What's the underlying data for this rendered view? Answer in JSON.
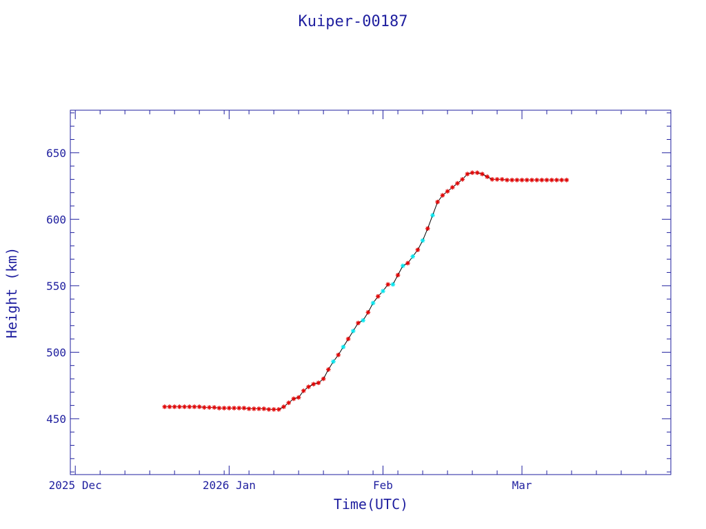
{
  "colors": {
    "axis": "#1f1f9f",
    "text": "#1f1f9f",
    "series_marker": "#e10000",
    "series_marker_alt": "#00e5ee",
    "line": "#000000"
  },
  "chart_data": {
    "type": "scatter",
    "title": "Kuiper-00187",
    "xlabel": "Time(UTC)",
    "ylabel": "Height (km)",
    "xlim": [
      "2025-11-30",
      "2026-03-31"
    ],
    "ylim": [
      408,
      682
    ],
    "x_ticks": [
      {
        "date": "2025-12-01",
        "label": "2025 Dec"
      },
      {
        "date": "2026-01-01",
        "label": "2026 Jan"
      },
      {
        "date": "2026-02-01",
        "label": "Feb"
      },
      {
        "date": "2026-03-01",
        "label": "Mar"
      }
    ],
    "y_ticks": [
      450,
      500,
      550,
      600,
      650
    ],
    "grid": false,
    "legend": "none",
    "series": [
      {
        "marker": "asterisk",
        "points": [
          [
            "2025-12-19",
            459
          ],
          [
            "2025-12-20",
            459
          ],
          [
            "2025-12-21",
            459
          ],
          [
            "2025-12-22",
            459
          ],
          [
            "2025-12-23",
            459
          ],
          [
            "2025-12-24",
            459
          ],
          [
            "2025-12-25",
            459
          ],
          [
            "2025-12-26",
            459
          ],
          [
            "2025-12-27",
            458.5
          ],
          [
            "2025-12-28",
            458.5
          ],
          [
            "2025-12-29",
            458.5
          ],
          [
            "2025-12-30",
            458
          ],
          [
            "2025-12-31",
            458
          ],
          [
            "2026-01-01",
            458
          ],
          [
            "2026-01-02",
            458
          ],
          [
            "2026-01-03",
            458
          ],
          [
            "2026-01-04",
            458
          ],
          [
            "2026-01-05",
            457.5
          ],
          [
            "2026-01-06",
            457.5
          ],
          [
            "2026-01-07",
            457.5
          ],
          [
            "2026-01-08",
            457.5
          ],
          [
            "2026-01-09",
            457
          ],
          [
            "2026-01-10",
            457
          ],
          [
            "2026-01-11",
            457
          ],
          [
            "2026-01-12",
            459
          ],
          [
            "2026-01-13",
            462
          ],
          [
            "2026-01-14",
            465
          ],
          [
            "2026-01-15",
            466
          ],
          [
            "2026-01-16",
            471
          ],
          [
            "2026-01-17",
            474
          ],
          [
            "2026-01-18",
            476
          ],
          [
            "2026-01-19",
            477
          ],
          [
            "2026-01-20",
            480
          ],
          [
            "2026-01-21",
            487
          ],
          [
            "2026-01-22",
            493
          ],
          [
            "2026-01-23",
            498
          ],
          [
            "2026-01-24",
            504
          ],
          [
            "2026-01-25",
            510
          ],
          [
            "2026-01-26",
            516
          ],
          [
            "2026-01-27",
            522
          ],
          [
            "2026-01-28",
            524
          ],
          [
            "2026-01-29",
            530
          ],
          [
            "2026-01-30",
            537
          ],
          [
            "2026-01-31",
            542
          ],
          [
            "2026-02-01",
            546
          ],
          [
            "2026-02-02",
            551
          ],
          [
            "2026-02-03",
            551
          ],
          [
            "2026-02-04",
            558
          ],
          [
            "2026-02-05",
            565
          ],
          [
            "2026-02-06",
            567
          ],
          [
            "2026-02-07",
            572
          ],
          [
            "2026-02-08",
            577
          ],
          [
            "2026-02-09",
            584
          ],
          [
            "2026-02-10",
            593
          ],
          [
            "2026-02-11",
            603
          ],
          [
            "2026-02-12",
            613
          ],
          [
            "2026-02-13",
            618
          ],
          [
            "2026-02-14",
            621
          ],
          [
            "2026-02-15",
            624
          ],
          [
            "2026-02-16",
            627
          ],
          [
            "2026-02-17",
            630
          ],
          [
            "2026-02-18",
            634
          ],
          [
            "2026-02-19",
            635
          ],
          [
            "2026-02-20",
            635
          ],
          [
            "2026-02-21",
            634
          ],
          [
            "2026-02-22",
            632
          ],
          [
            "2026-02-23",
            630
          ],
          [
            "2026-02-24",
            630
          ],
          [
            "2026-02-25",
            630
          ],
          [
            "2026-02-26",
            629.5
          ],
          [
            "2026-02-27",
            629.5
          ],
          [
            "2026-02-28",
            629.5
          ],
          [
            "2026-03-01",
            629.5
          ],
          [
            "2026-03-02",
            629.5
          ],
          [
            "2026-03-03",
            629.5
          ],
          [
            "2026-03-04",
            629.5
          ],
          [
            "2026-03-05",
            629.5
          ],
          [
            "2026-03-06",
            629.5
          ],
          [
            "2026-03-07",
            629.5
          ],
          [
            "2026-03-08",
            629.5
          ],
          [
            "2026-03-09",
            629.5
          ],
          [
            "2026-03-10",
            629.5
          ]
        ]
      }
    ]
  }
}
